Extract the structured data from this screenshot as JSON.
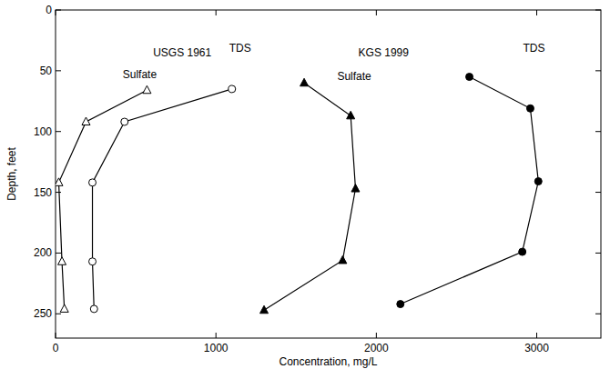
{
  "chart_data": {
    "type": "line",
    "x_label": "Concentration, mg/L",
    "y_label": "Depth, feet",
    "xlim": [
      0,
      3400
    ],
    "xticks": [
      0,
      1000,
      2000,
      3000
    ],
    "ylim": [
      0,
      270
    ],
    "yticks": [
      0,
      50,
      100,
      150,
      200,
      250
    ],
    "grid": false,
    "annotations": [
      {
        "text": "USGS 1961",
        "x": 790,
        "y": 35
      },
      {
        "text": "KGS 1999",
        "x": 2045,
        "y": 35
      }
    ],
    "series": [
      {
        "name": "Sulfate",
        "color": "#000000",
        "marker": "triangle-open",
        "x": [
          570,
          190,
          20,
          40,
          55
        ],
        "values": [
          66,
          92,
          142,
          207,
          246
        ]
      },
      {
        "name": "TDS",
        "color": "#000000",
        "marker": "circle-open",
        "x": [
          1100,
          430,
          230,
          230,
          240
        ],
        "values": [
          65,
          92,
          142,
          207,
          246
        ]
      },
      {
        "name": "Sulfate",
        "color": "#000000",
        "marker": "triangle",
        "x": [
          1550,
          1840,
          1870,
          1790,
          1300
        ],
        "values": [
          60,
          87,
          147,
          206,
          247
        ]
      },
      {
        "name": "TDS",
        "color": "#000000",
        "marker": "circle",
        "x": [
          2580,
          2960,
          3010,
          2910,
          2150
        ],
        "values": [
          55,
          81,
          141,
          199,
          242
        ]
      }
    ]
  }
}
